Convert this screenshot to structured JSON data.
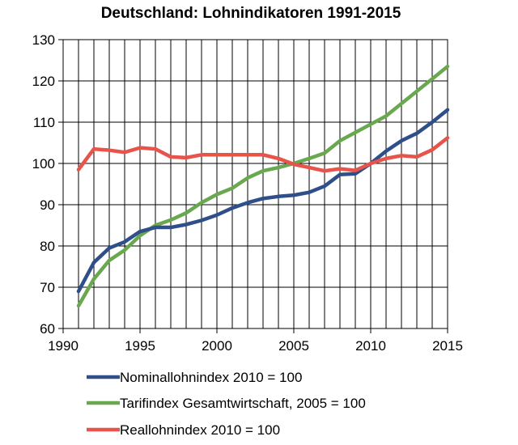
{
  "chart_data": {
    "type": "line",
    "title": "Deutschland: Lohnindikatoren 1991-2015",
    "xlabel": "",
    "ylabel": "",
    "xlim": [
      1990,
      2015
    ],
    "ylim": [
      60,
      130
    ],
    "xticks": [
      "1990",
      "1995",
      "2000",
      "2005",
      "2010",
      "2015"
    ],
    "yticks": [
      "60",
      "70",
      "80",
      "90",
      "100",
      "110",
      "120",
      "130"
    ],
    "grid": true,
    "legend_position": "bottom",
    "x": [
      1991,
      1992,
      1993,
      1994,
      1995,
      1996,
      1997,
      1998,
      1999,
      2000,
      2001,
      2002,
      2003,
      2004,
      2005,
      2006,
      2007,
      2008,
      2009,
      2010,
      2011,
      2012,
      2013,
      2014,
      2015
    ],
    "series": [
      {
        "name": "Nominallohnindex 2010 = 100",
        "color": "#2e4f8a",
        "values": [
          69,
          76,
          79.5,
          81,
          83.5,
          84.5,
          84.5,
          85.2,
          86.2,
          87.5,
          89.2,
          90.5,
          91.5,
          92,
          92.3,
          93,
          94.5,
          97.3,
          97.5,
          100,
          103,
          105.5,
          107.3,
          110,
          113
        ]
      },
      {
        "name": "Tarifindex Gesamtwirtschaft, 2005 = 100",
        "color": "#6aa84f",
        "values": [
          65.5,
          72,
          76.5,
          79,
          82.5,
          85,
          86.3,
          88,
          90.5,
          92.5,
          94,
          96.5,
          98.2,
          99,
          100,
          101.2,
          102.5,
          105.5,
          107.5,
          109.5,
          111.5,
          114.5,
          117.5,
          120.5,
          123.5
        ]
      },
      {
        "name": "Reallohnindex 2010 = 100",
        "color": "#e8534a",
        "values": [
          98.5,
          103.5,
          103.2,
          102.7,
          103.8,
          103.5,
          101.6,
          101.4,
          102.1,
          102.1,
          102.1,
          102.1,
          102.1,
          101.2,
          99.8,
          99,
          98.2,
          98.7,
          98.3,
          100,
          101.2,
          101.9,
          101.6,
          103.3,
          106.2
        ]
      }
    ]
  }
}
